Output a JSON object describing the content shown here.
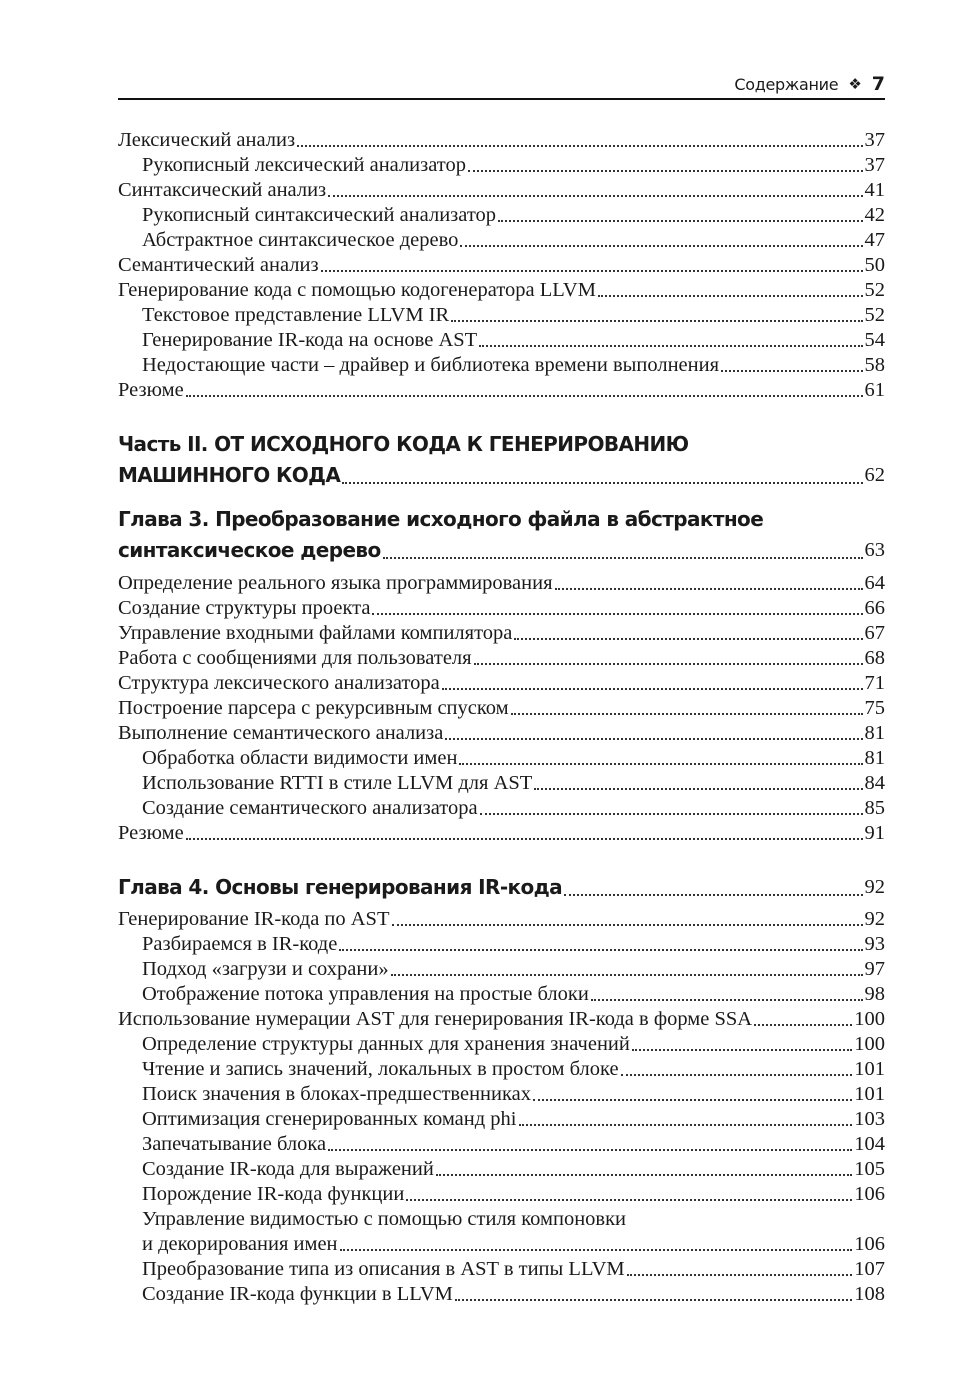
{
  "header": {
    "title": "Содержание",
    "ornament": "❖",
    "page_number": "7"
  },
  "blocks": [
    {
      "type": "entries",
      "items": [
        {
          "lines": [
            "Лексический анализ"
          ],
          "page": "37",
          "level": 0
        },
        {
          "lines": [
            "Рукописный лексический анализатор"
          ],
          "page": "37",
          "level": 1
        },
        {
          "lines": [
            "Синтаксический анализ"
          ],
          "page": "41",
          "level": 0
        },
        {
          "lines": [
            "Рукописный синтаксический анализатор"
          ],
          "page": "42",
          "level": 1
        },
        {
          "lines": [
            "Абстрактное синтаксическое дерево"
          ],
          "page": "47",
          "level": 1
        },
        {
          "lines": [
            "Семантический анализ"
          ],
          "page": "50",
          "level": 0
        },
        {
          "lines": [
            "Генерирование кода с помощью кодогенератора LLVM"
          ],
          "page": "52",
          "level": 0
        },
        {
          "lines": [
            "Текстовое представление LLVM IR"
          ],
          "page": "52",
          "level": 1
        },
        {
          "lines": [
            "Генерирование IR-кода на основе AST"
          ],
          "page": "54",
          "level": 1
        },
        {
          "lines": [
            "Недостающие части – драйвер и библиотека времени выполнения"
          ],
          "page": "58",
          "level": 1
        },
        {
          "lines": [
            "Резюме"
          ],
          "page": "61",
          "level": 0
        }
      ]
    },
    {
      "type": "head",
      "items": [
        {
          "lines": [
            "Часть II. ОТ ИСХОДНОГО КОДА К ГЕНЕРИРОВАНИЮ",
            "МАШИННОГО КОДА"
          ],
          "page": "62",
          "level": 0
        }
      ]
    },
    {
      "type": "head",
      "items": [
        {
          "lines": [
            "Глава 3. Преобразование исходного файла в абстрактное",
            "синтаксическое дерево"
          ],
          "page": "63",
          "level": 0
        }
      ]
    },
    {
      "type": "entries",
      "items": [
        {
          "lines": [
            "Определение реального языка программирования"
          ],
          "page": "64",
          "level": 0
        },
        {
          "lines": [
            "Создание структуры проекта"
          ],
          "page": "66",
          "level": 0
        },
        {
          "lines": [
            "Управление входными файлами компилятора"
          ],
          "page": "67",
          "level": 0
        },
        {
          "lines": [
            "Работа с сообщениями для пользователя"
          ],
          "page": "68",
          "level": 0
        },
        {
          "lines": [
            "Структура лексического анализатора"
          ],
          "page": "71",
          "level": 0
        },
        {
          "lines": [
            "Построение парсера с рекурсивным спуском"
          ],
          "page": "75",
          "level": 0
        },
        {
          "lines": [
            "Выполнение семантического анализа"
          ],
          "page": "81",
          "level": 0
        },
        {
          "lines": [
            "Обработка области видимости имен"
          ],
          "page": "81",
          "level": 1
        },
        {
          "lines": [
            "Использование RTTI в стиле LLVM для AST"
          ],
          "page": "84",
          "level": 1
        },
        {
          "lines": [
            "Создание семантического анализатора"
          ],
          "page": "85",
          "level": 1
        },
        {
          "lines": [
            "Резюме"
          ],
          "page": "91",
          "level": 0
        }
      ]
    },
    {
      "type": "head",
      "items": [
        {
          "lines": [
            "Глава 4. Основы генерирования IR-кода"
          ],
          "page": "92",
          "level": 0
        }
      ]
    },
    {
      "type": "entries",
      "items": [
        {
          "lines": [
            "Генерирование IR-кода по AST"
          ],
          "page": "92",
          "level": 0
        },
        {
          "lines": [
            "Разбираемся в IR-коде"
          ],
          "page": "93",
          "level": 1
        },
        {
          "lines": [
            "Подход «загрузи и сохрани»"
          ],
          "page": "97",
          "level": 1
        },
        {
          "lines": [
            "Отображение потока управления на простые блоки"
          ],
          "page": "98",
          "level": 1
        },
        {
          "lines": [
            "Использование нумерации AST для генерирования IR-кода в форме SSA"
          ],
          "page": "100",
          "level": 0
        },
        {
          "lines": [
            "Определение структуры данных для хранения значений"
          ],
          "page": "100",
          "level": 1
        },
        {
          "lines": [
            "Чтение и запись значений, локальных в простом блоке"
          ],
          "page": "101",
          "level": 1
        },
        {
          "lines": [
            "Поиск значения в блоках-предшественниках"
          ],
          "page": "101",
          "level": 1
        },
        {
          "lines": [
            "Оптимизация сгенерированных команд phi"
          ],
          "page": "103",
          "level": 1
        },
        {
          "lines": [
            "Запечатывание блока"
          ],
          "page": "104",
          "level": 1
        },
        {
          "lines": [
            "Создание IR-кода для выражений"
          ],
          "page": "105",
          "level": 1
        },
        {
          "lines": [
            "Порождение IR-кода функции"
          ],
          "page": "106",
          "level": 1
        },
        {
          "lines": [
            "Управление видимостью с помощью стиля компоновки",
            "и декорирования имен"
          ],
          "page": "106",
          "level": 1
        },
        {
          "lines": [
            "Преобразование типа из описания в AST в типы LLVM"
          ],
          "page": "107",
          "level": 1
        },
        {
          "lines": [
            "Создание IR-кода функции в LLVM"
          ],
          "page": "108",
          "level": 1
        }
      ]
    }
  ]
}
